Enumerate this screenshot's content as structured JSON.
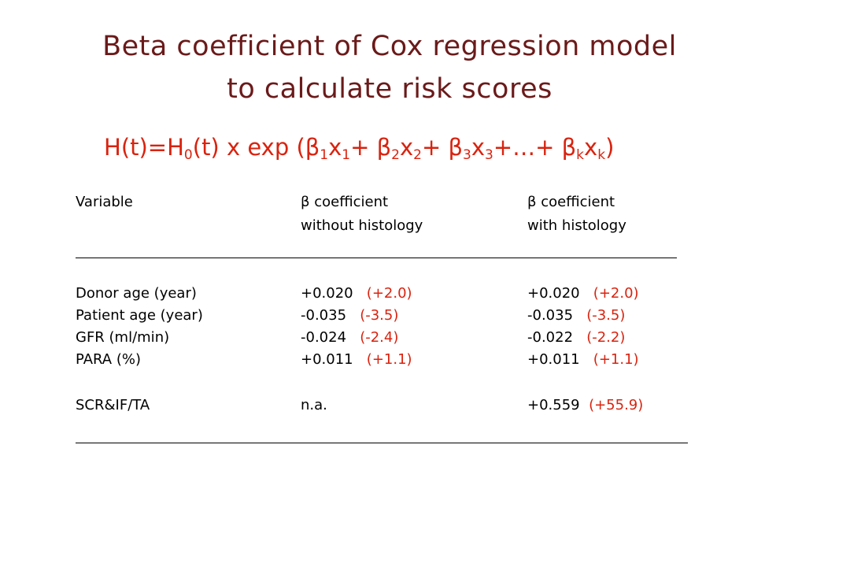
{
  "title": {
    "line1": "Beta coefficient of Cox regression model",
    "line2": "to calculate risk scores"
  },
  "formula": {
    "H": "H",
    "t_eq": "(t)=H",
    "sub0": "0",
    "mid": "(t) x exp (β",
    "sub1": "1",
    "x": "x",
    "sub2": "2",
    "sub3": "3",
    "subk": "k",
    "plus_beta": "+ β",
    "dots": "+…+ β",
    "close": ")"
  },
  "table": {
    "header": {
      "col1": "Variable",
      "col2_line1": "β coefficient",
      "col2_line2": "without histology",
      "col3_line1": "β coefficient",
      "col3_line2": "with histology"
    },
    "rows": [
      {
        "variable": "Donor age (year)",
        "without": "+0.020",
        "without_pct": "(+2.0)",
        "with": "+0.020",
        "with_pct": "(+2.0)"
      },
      {
        "variable": "Patient age (year)",
        "without": "-0.035",
        "without_pct": "(-3.5)",
        "with": "-0.035",
        "with_pct": "(-3.5)"
      },
      {
        "variable": "GFR (ml/min)",
        "without": "-0.024",
        "without_pct": "(-2.4)",
        "with": "-0.022",
        "with_pct": "(-2.2)"
      },
      {
        "variable": "PARA (%)",
        "without": "+0.011",
        "without_pct": "(+1.1)",
        "with": "+0.011",
        "with_pct": "(+1.1)"
      },
      {
        "variable": "SCR&IF/TA",
        "without": "n.a.",
        "without_pct": "",
        "with": "+0.559",
        "with_pct": "(+55.9)"
      }
    ]
  },
  "colors": {
    "title": "#6b1a1a",
    "formula": "#d9230f",
    "percent": "#d9230f",
    "text": "#000000"
  }
}
